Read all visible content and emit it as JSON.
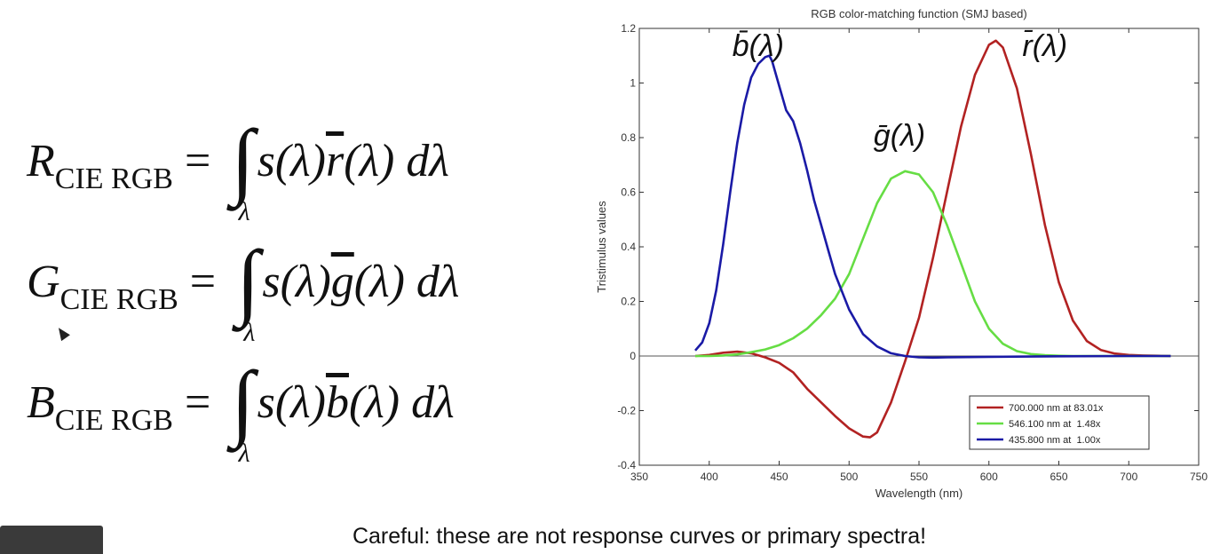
{
  "equations": [
    {
      "lhs": "R",
      "sub": "CIE RGB",
      "integrand_pre": "s(λ)",
      "cmf": "r",
      "integrand_post": "(λ) dλ",
      "lim": "λ"
    },
    {
      "lhs": "G",
      "sub": "CIE RGB",
      "integrand_pre": "s(λ)",
      "cmf": "g",
      "integrand_post": "(λ) dλ",
      "lim": "λ"
    },
    {
      "lhs": "B",
      "sub": "CIE RGB",
      "integrand_pre": "s(λ)",
      "cmf": "b",
      "integrand_post": "(λ) dλ",
      "lim": "λ"
    }
  ],
  "caption": "Careful: these are not response curves or primary spectra!",
  "chart_data": {
    "type": "line",
    "title": "RGB color-matching function (SMJ based)",
    "xlabel": "Wavelength (nm)",
    "ylabel": "Tristimulus values",
    "xlim": [
      350,
      750
    ],
    "ylim": [
      -0.4,
      1.2
    ],
    "xticks": [
      350,
      400,
      450,
      500,
      550,
      600,
      650,
      700,
      750
    ],
    "yticks": [
      -0.4,
      -0.2,
      0,
      0.2,
      0.4,
      0.6,
      0.8,
      1,
      1.2
    ],
    "zero_line": true,
    "grid": false,
    "legend_position": "bottom-right",
    "annotations": [
      {
        "label": "b̄(λ)",
        "x": 435,
        "y": 1.1
      },
      {
        "label": "ḡ(λ)",
        "x": 536,
        "y": 0.77
      },
      {
        "label": "r̄(λ)",
        "x": 640,
        "y": 1.1
      }
    ],
    "series": [
      {
        "name": "700.000 nm at 83.01x",
        "color": "#b22222",
        "x": [
          390,
          400,
          410,
          420,
          430,
          440,
          450,
          460,
          470,
          480,
          490,
          500,
          510,
          515,
          520,
          530,
          540,
          550,
          560,
          570,
          580,
          590,
          600,
          605,
          610,
          620,
          630,
          640,
          650,
          660,
          670,
          680,
          690,
          700,
          710,
          720,
          730
        ],
        "y": [
          0.0,
          0.004,
          0.012,
          0.016,
          0.01,
          -0.005,
          -0.025,
          -0.06,
          -0.12,
          -0.17,
          -0.22,
          -0.265,
          -0.295,
          -0.298,
          -0.28,
          -0.17,
          -0.02,
          0.14,
          0.36,
          0.6,
          0.84,
          1.03,
          1.14,
          1.155,
          1.13,
          0.98,
          0.74,
          0.48,
          0.27,
          0.13,
          0.055,
          0.022,
          0.009,
          0.004,
          0.002,
          0.001,
          0.0
        ]
      },
      {
        "name": "546.100 nm at  1.48x",
        "color": "#66dd44",
        "x": [
          390,
          400,
          410,
          420,
          430,
          440,
          450,
          460,
          470,
          480,
          490,
          500,
          510,
          520,
          530,
          540,
          550,
          560,
          570,
          580,
          590,
          600,
          610,
          620,
          630,
          640,
          650,
          660,
          680,
          700,
          730
        ],
        "y": [
          0.0,
          0.0,
          0.002,
          0.006,
          0.014,
          0.024,
          0.04,
          0.065,
          0.1,
          0.15,
          0.21,
          0.3,
          0.43,
          0.56,
          0.65,
          0.677,
          0.665,
          0.6,
          0.48,
          0.34,
          0.2,
          0.1,
          0.045,
          0.018,
          0.007,
          0.003,
          0.001,
          0.0,
          0.0,
          0.0,
          0.0
        ]
      },
      {
        "name": "435.800 nm at  1.00x",
        "color": "#1a1aa6",
        "x": [
          390,
          395,
          400,
          405,
          410,
          415,
          420,
          425,
          430,
          435,
          440,
          443,
          445,
          450,
          455,
          460,
          465,
          470,
          475,
          480,
          485,
          490,
          500,
          510,
          520,
          530,
          540,
          550,
          560,
          570,
          600,
          650,
          700,
          730
        ],
        "y": [
          0.02,
          0.05,
          0.12,
          0.24,
          0.41,
          0.6,
          0.78,
          0.92,
          1.02,
          1.07,
          1.095,
          1.1,
          1.08,
          0.99,
          0.9,
          0.86,
          0.78,
          0.68,
          0.57,
          0.48,
          0.39,
          0.3,
          0.17,
          0.08,
          0.035,
          0.01,
          0.0,
          -0.005,
          -0.006,
          -0.005,
          -0.003,
          -0.001,
          0.0,
          0.0
        ]
      }
    ]
  }
}
